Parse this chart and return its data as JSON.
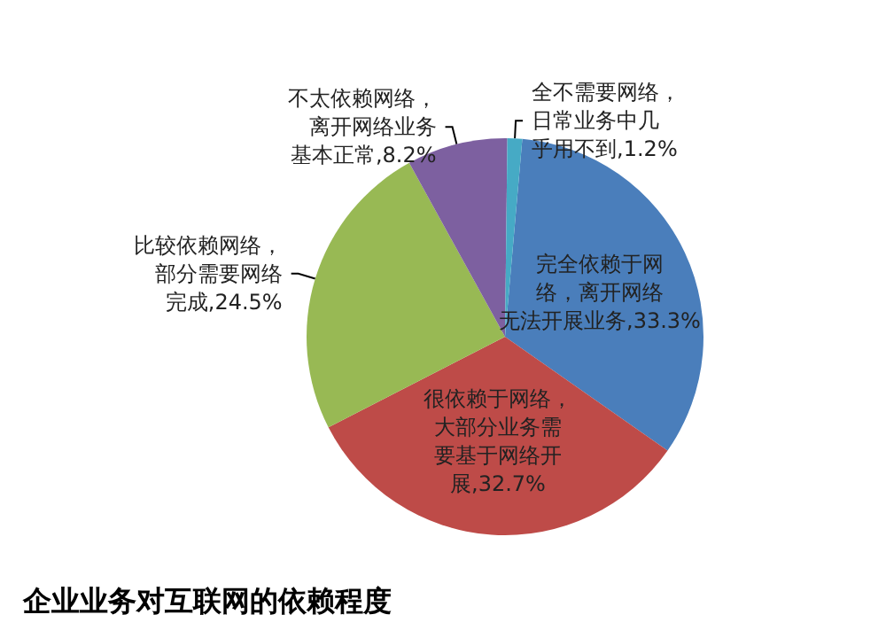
{
  "chart_data": {
    "type": "pie",
    "title": "企业业务对互联网的依赖程度",
    "categories": [
      "完全依赖于网络，离开网络无法开展业务",
      "很依赖于网络，大部分业务需要基于网络开展",
      "比较依赖网络，部分需要网络完成",
      "不太依赖网络，离开网络业务基本正常",
      "全不需要网络，日常业务中几乎用不到"
    ],
    "values": [
      33.3,
      32.7,
      24.5,
      8.2,
      1.2
    ],
    "value_labels": [
      "33.3%",
      "32.7%",
      "24.5%",
      "8.2%",
      "1.2%"
    ],
    "colors": [
      "#4a7ebb",
      "#be4b48",
      "#98b954",
      "#7d60a0",
      "#46aac5"
    ],
    "legend": false
  }
}
